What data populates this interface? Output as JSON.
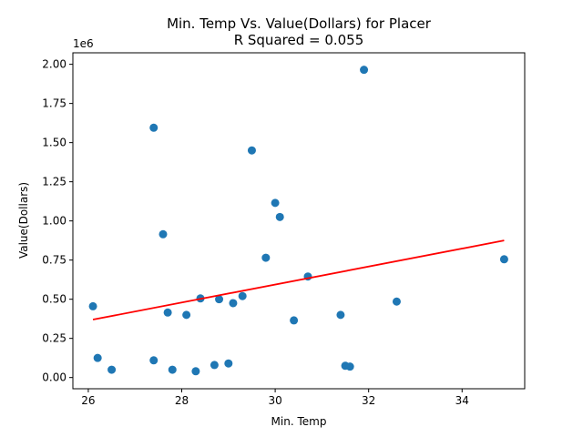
{
  "chart_data": {
    "type": "scatter",
    "title_line1": "Min. Temp Vs. Value(Dollars) for Placer",
    "title_line2": "R Squared =  0.055",
    "xlabel": "Min. Temp",
    "ylabel": "Value(Dollars)",
    "y_offset_label": "1e6",
    "xlim": [
      25.67,
      35.34
    ],
    "ylim": [
      -0.0716,
      2.0734
    ],
    "x_ticks": [
      26,
      28,
      30,
      32,
      34
    ],
    "x_tick_labels": [
      "26",
      "28",
      "30",
      "32",
      "34"
    ],
    "y_ticks": [
      0.0,
      0.25,
      0.5,
      0.75,
      1.0,
      1.25,
      1.5,
      1.75,
      2.0
    ],
    "y_tick_labels": [
      "0.00",
      "0.25",
      "0.50",
      "0.75",
      "1.00",
      "1.25",
      "1.50",
      "1.75",
      "2.00"
    ],
    "grid": false,
    "point_color": "#1f77b4",
    "fit_color": "#ff0000",
    "points": [
      {
        "x": 26.1,
        "y": 0.455
      },
      {
        "x": 26.2,
        "y": 0.125
      },
      {
        "x": 26.5,
        "y": 0.05
      },
      {
        "x": 27.4,
        "y": 1.595
      },
      {
        "x": 27.4,
        "y": 0.11
      },
      {
        "x": 27.6,
        "y": 0.915
      },
      {
        "x": 27.7,
        "y": 0.415
      },
      {
        "x": 27.8,
        "y": 0.05
      },
      {
        "x": 28.1,
        "y": 0.4
      },
      {
        "x": 28.3,
        "y": 0.04
      },
      {
        "x": 28.4,
        "y": 0.505
      },
      {
        "x": 28.7,
        "y": 0.08
      },
      {
        "x": 28.8,
        "y": 0.5
      },
      {
        "x": 29.0,
        "y": 0.09
      },
      {
        "x": 29.1,
        "y": 0.475
      },
      {
        "x": 29.3,
        "y": 0.52
      },
      {
        "x": 29.5,
        "y": 1.45
      },
      {
        "x": 29.8,
        "y": 0.765
      },
      {
        "x": 30.0,
        "y": 1.115
      },
      {
        "x": 30.1,
        "y": 1.025
      },
      {
        "x": 30.4,
        "y": 0.365
      },
      {
        "x": 30.7,
        "y": 0.645
      },
      {
        "x": 31.4,
        "y": 0.4
      },
      {
        "x": 31.5,
        "y": 0.075
      },
      {
        "x": 31.6,
        "y": 0.07
      },
      {
        "x": 31.9,
        "y": 1.965
      },
      {
        "x": 32.6,
        "y": 0.485
      },
      {
        "x": 34.9,
        "y": 0.755
      }
    ],
    "fit_line": {
      "x": [
        26.1,
        34.9
      ],
      "y": [
        0.37,
        0.875
      ]
    }
  }
}
